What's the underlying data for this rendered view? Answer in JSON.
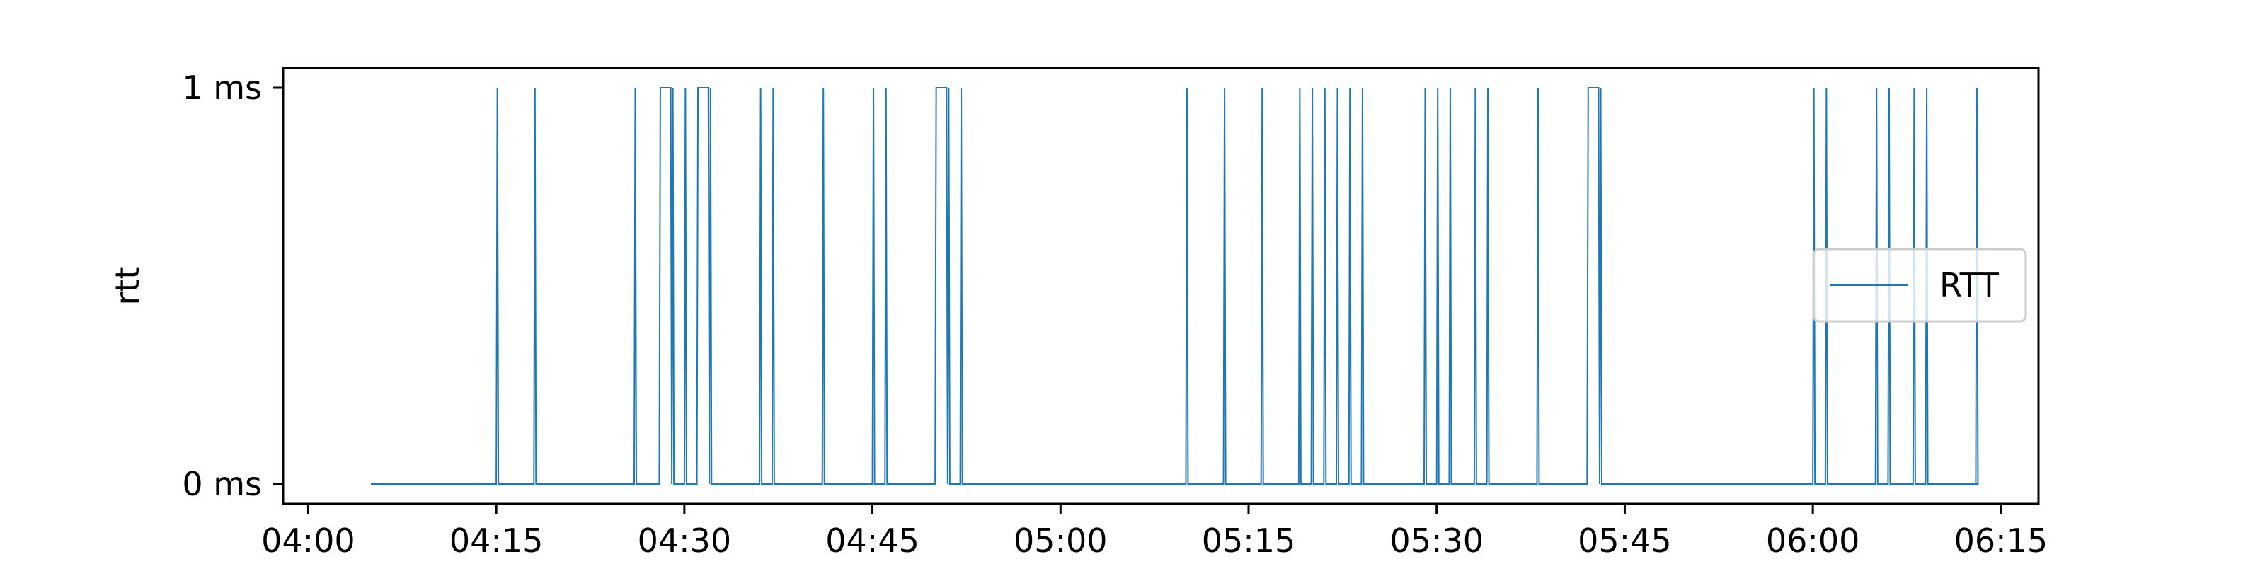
{
  "chart_data": {
    "type": "line",
    "title": "",
    "xlabel": "",
    "ylabel": "rtt",
    "x_unit": "time (HH:MM)",
    "y_unit": "ms",
    "xlim": [
      "03:58",
      "06:18"
    ],
    "ylim": [
      -0.05,
      1.05
    ],
    "x_ticks": [
      "04:00",
      "04:15",
      "04:30",
      "04:45",
      "05:00",
      "05:15",
      "05:30",
      "05:45",
      "06:00",
      "06:15"
    ],
    "y_ticks": [
      {
        "value": 0,
        "label": "0 ms"
      },
      {
        "value": 1,
        "label": "1 ms"
      }
    ],
    "grid": false,
    "legend": {
      "position": "center-right",
      "entries": [
        "RTT"
      ]
    },
    "colors": {
      "RTT": "#1f77b4"
    },
    "series": [
      {
        "name": "RTT",
        "note": "binary RTT samples; 1 ms spikes at the listed times, 0 ms otherwise",
        "start": "04:05",
        "end": "06:13",
        "spikes": [
          [
            "04:15",
            "04:15"
          ],
          [
            "04:18",
            "04:18"
          ],
          [
            "04:26",
            "04:26"
          ],
          [
            "04:28",
            "04:29"
          ],
          [
            "04:29",
            "04:29"
          ],
          [
            "04:30",
            "04:30"
          ],
          [
            "04:31",
            "04:32"
          ],
          [
            "04:32",
            "04:32"
          ],
          [
            "04:36",
            "04:36"
          ],
          [
            "04:37",
            "04:37"
          ],
          [
            "04:41",
            "04:41"
          ],
          [
            "04:45",
            "04:45"
          ],
          [
            "04:46",
            "04:46"
          ],
          [
            "04:50",
            "04:51"
          ],
          [
            "04:51",
            "04:51"
          ],
          [
            "04:52",
            "04:52"
          ],
          [
            "05:10",
            "05:10"
          ],
          [
            "05:13",
            "05:13"
          ],
          [
            "05:16",
            "05:16"
          ],
          [
            "05:19",
            "05:19"
          ],
          [
            "05:20",
            "05:20"
          ],
          [
            "05:21",
            "05:21"
          ],
          [
            "05:22",
            "05:22"
          ],
          [
            "05:23",
            "05:23"
          ],
          [
            "05:24",
            "05:24"
          ],
          [
            "05:29",
            "05:29"
          ],
          [
            "05:30",
            "05:30"
          ],
          [
            "05:31",
            "05:31"
          ],
          [
            "05:33",
            "05:33"
          ],
          [
            "05:34",
            "05:34"
          ],
          [
            "05:38",
            "05:38"
          ],
          [
            "05:42",
            "05:43"
          ],
          [
            "05:43",
            "05:43"
          ],
          [
            "06:00",
            "06:00"
          ],
          [
            "06:01",
            "06:01"
          ],
          [
            "06:05",
            "06:05"
          ],
          [
            "06:06",
            "06:06"
          ],
          [
            "06:08",
            "06:08"
          ],
          [
            "06:09",
            "06:09"
          ],
          [
            "06:13",
            "06:13"
          ]
        ]
      }
    ]
  }
}
